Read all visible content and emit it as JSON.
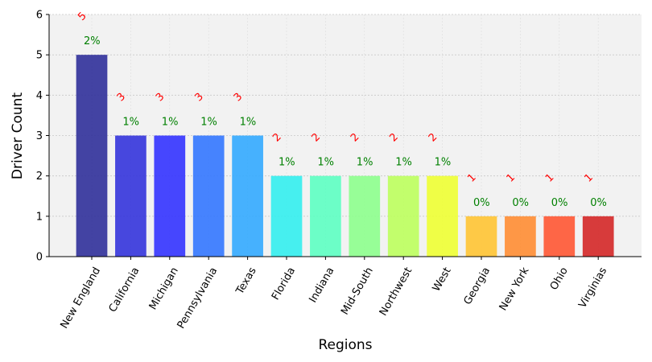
{
  "chart_data": {
    "type": "bar",
    "categories": [
      "New England",
      "California",
      "Michigan",
      "Pennsylvania",
      "Texas",
      "Florida",
      "Indiana",
      "Mid-South",
      "Northwest",
      "West",
      "Georgia",
      "New York",
      "Ohio",
      "Virginias"
    ],
    "values": [
      5,
      3,
      3,
      3,
      3,
      2,
      2,
      2,
      2,
      2,
      1,
      1,
      1,
      1
    ],
    "value_labels": [
      "5",
      "3",
      "3",
      "3",
      "3",
      "2",
      "2",
      "2",
      "2",
      "2",
      "1",
      "1",
      "1",
      "1"
    ],
    "percent_labels": [
      "2%",
      "1%",
      "1%",
      "1%",
      "1%",
      "1%",
      "1%",
      "1%",
      "1%",
      "1%",
      "0%",
      "0%",
      "0%",
      "0%"
    ],
    "colors": [
      "#30309a",
      "#3434dc",
      "#3333ff",
      "#3377ff",
      "#33aaff",
      "#33eeee",
      "#5dffc2",
      "#8dff8d",
      "#bdff5d",
      "#eeff33",
      "#ffc433",
      "#ff8d33",
      "#ff5733",
      "#d42727"
    ],
    "title": "",
    "xlabel": "Regions",
    "ylabel": "Driver Count",
    "ylim": [
      0,
      6
    ],
    "yticks": [
      0,
      1,
      2,
      3,
      4,
      5,
      6
    ],
    "grid": true,
    "background": "#f2f2f2"
  }
}
